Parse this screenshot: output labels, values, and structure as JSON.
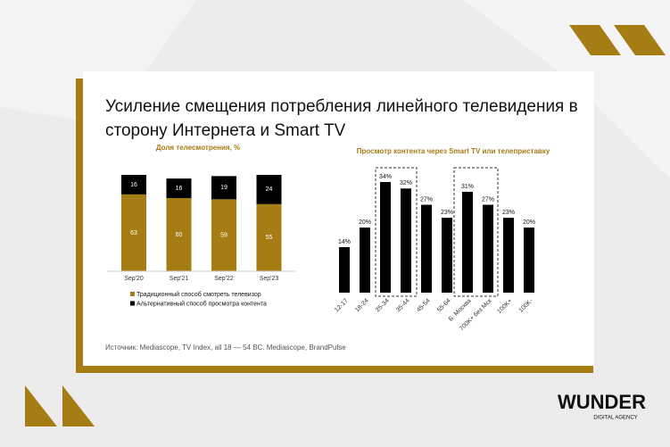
{
  "title": "Усиление смещения потребления линейного телевидения в сторону Интернета и Smart TV",
  "source": "Источник: Mediascope, TV Index, all  18 — 54 BC. Mediascope, BrandPulse",
  "logo": {
    "name": "WUNDER",
    "tagline": "DIGITAL AGENCY"
  },
  "chart_data": [
    {
      "type": "bar",
      "stacked": true,
      "title": "Доля телесмотрения, %",
      "categories": [
        "Sep'20",
        "Sep'21",
        "Sep'22",
        "Sep'23"
      ],
      "series": [
        {
          "name": "Традиционный способ смотреть телевизор",
          "color": "#a67c14",
          "values": [
            63,
            60,
            59,
            55
          ]
        },
        {
          "name": "Альтернативный способ просмотра контента",
          "color": "#000000",
          "values": [
            16,
            16,
            19,
            24
          ]
        }
      ]
    },
    {
      "type": "bar",
      "title": "Просмотр контента через Smart TV или телеприставку",
      "categories": [
        "12-17",
        "18-24",
        "25-34",
        "35-44",
        "45-54",
        "55-64",
        "Б. Москва",
        "700K+ без Мск",
        "100K+",
        "100K-"
      ],
      "values": [
        14,
        20,
        34,
        32,
        27,
        23,
        31,
        27,
        23,
        20
      ],
      "value_labels": [
        "14%",
        "20%",
        "34%",
        "32%",
        "27%",
        "23%",
        "31%",
        "27%",
        "23%",
        "20%"
      ],
      "color": "#000000"
    }
  ]
}
